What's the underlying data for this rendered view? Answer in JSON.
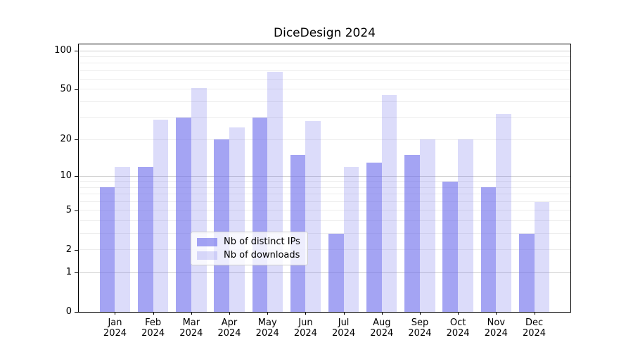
{
  "figure": {
    "background": "#ffffff",
    "spine_color": "#000000",
    "minor_grid_color": "#ededed",
    "major_grid_color": "#cfcfcf"
  },
  "chart_data": {
    "type": "bar",
    "title": "DiceDesign 2024",
    "xlabel": "",
    "ylabel": "",
    "y_scale": "symlog (log10 of 1+value)",
    "grid": true,
    "legend_position": "lower center (inside plot)",
    "categories": [
      "Jan 2024",
      "Feb 2024",
      "Mar 2024",
      "Apr 2024",
      "May 2024",
      "Jun 2024",
      "Jul 2024",
      "Aug 2024",
      "Sep 2024",
      "Oct 2024",
      "Nov 2024",
      "Dec 2024"
    ],
    "series": [
      {
        "name": "Nb of distinct IPs",
        "color": "rgba(108,108,236,0.62)",
        "values": [
          8,
          12,
          30,
          20,
          30,
          15,
          3,
          13,
          15,
          9,
          8,
          3
        ]
      },
      {
        "name": "Nb of downloads",
        "color": "rgba(108,108,236,0.24)",
        "values": [
          12,
          29,
          51,
          25,
          69,
          28,
          12,
          45,
          20,
          20,
          32,
          6
        ]
      }
    ],
    "ylim": [
      0,
      112
    ],
    "y_ticks": [
      0,
      1,
      2,
      5,
      10,
      20,
      50,
      100
    ],
    "y_major_gridlines": [
      1,
      10,
      100
    ],
    "y_minor_gridlines": [
      2,
      3,
      4,
      5,
      6,
      7,
      8,
      9,
      20,
      30,
      40,
      50,
      60,
      70,
      80,
      90
    ]
  }
}
